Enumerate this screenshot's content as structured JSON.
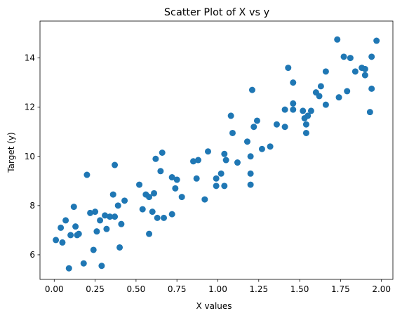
{
  "chart_data": {
    "type": "scatter",
    "title": "Scatter Plot of X vs y",
    "xlabel": "X values",
    "ylabel": "Target (y)",
    "xlim": [
      -0.087,
      2.07
    ],
    "ylim": [
      5.0,
      15.5
    ],
    "xticks": [
      0.0,
      0.25,
      0.5,
      0.75,
      1.0,
      1.25,
      1.5,
      1.75,
      2.0
    ],
    "xtick_labels": [
      "0.00",
      "0.25",
      "0.50",
      "0.75",
      "1.00",
      "1.25",
      "1.50",
      "1.75",
      "2.00"
    ],
    "yticks": [
      6,
      8,
      10,
      12,
      14
    ],
    "ytick_labels": [
      "6",
      "8",
      "10",
      "12",
      "14"
    ],
    "grid": false,
    "color": "#1f77b4",
    "points": [
      [
        0.01,
        6.6
      ],
      [
        0.04,
        7.1
      ],
      [
        0.05,
        6.5
      ],
      [
        0.07,
        7.4
      ],
      [
        0.09,
        5.45
      ],
      [
        0.1,
        6.8
      ],
      [
        0.12,
        7.95
      ],
      [
        0.13,
        7.15
      ],
      [
        0.14,
        6.8
      ],
      [
        0.15,
        6.85
      ],
      [
        0.18,
        5.65
      ],
      [
        0.2,
        9.25
      ],
      [
        0.22,
        7.7
      ],
      [
        0.24,
        6.2
      ],
      [
        0.25,
        7.75
      ],
      [
        0.26,
        6.95
      ],
      [
        0.28,
        7.4
      ],
      [
        0.29,
        5.55
      ],
      [
        0.31,
        7.6
      ],
      [
        0.32,
        7.05
      ],
      [
        0.34,
        7.55
      ],
      [
        0.36,
        8.45
      ],
      [
        0.37,
        7.55
      ],
      [
        0.37,
        9.65
      ],
      [
        0.39,
        8.0
      ],
      [
        0.4,
        6.3
      ],
      [
        0.41,
        7.25
      ],
      [
        0.43,
        8.2
      ],
      [
        0.52,
        8.85
      ],
      [
        0.54,
        7.85
      ],
      [
        0.56,
        8.45
      ],
      [
        0.58,
        6.85
      ],
      [
        0.58,
        8.35
      ],
      [
        0.6,
        7.75
      ],
      [
        0.61,
        8.5
      ],
      [
        0.62,
        9.9
      ],
      [
        0.63,
        7.5
      ],
      [
        0.65,
        9.4
      ],
      [
        0.66,
        10.15
      ],
      [
        0.67,
        7.5
      ],
      [
        0.72,
        9.15
      ],
      [
        0.72,
        7.65
      ],
      [
        0.74,
        8.7
      ],
      [
        0.75,
        9.05
      ],
      [
        0.78,
        8.35
      ],
      [
        0.85,
        9.8
      ],
      [
        0.87,
        9.1
      ],
      [
        0.88,
        9.85
      ],
      [
        0.92,
        8.25
      ],
      [
        0.94,
        10.2
      ],
      [
        0.99,
        9.1
      ],
      [
        0.99,
        8.8
      ],
      [
        1.02,
        9.3
      ],
      [
        1.04,
        10.1
      ],
      [
        1.04,
        8.8
      ],
      [
        1.05,
        9.85
      ],
      [
        1.08,
        11.65
      ],
      [
        1.09,
        10.95
      ],
      [
        1.12,
        9.75
      ],
      [
        1.18,
        10.6
      ],
      [
        1.2,
        8.85
      ],
      [
        1.2,
        9.3
      ],
      [
        1.2,
        10.0
      ],
      [
        1.21,
        12.7
      ],
      [
        1.22,
        11.2
      ],
      [
        1.24,
        11.45
      ],
      [
        1.27,
        10.3
      ],
      [
        1.32,
        10.4
      ],
      [
        1.36,
        11.3
      ],
      [
        1.41,
        11.9
      ],
      [
        1.41,
        11.2
      ],
      [
        1.43,
        13.6
      ],
      [
        1.46,
        13.0
      ],
      [
        1.46,
        12.15
      ],
      [
        1.46,
        11.9
      ],
      [
        1.52,
        11.85
      ],
      [
        1.53,
        11.55
      ],
      [
        1.54,
        11.3
      ],
      [
        1.54,
        10.95
      ],
      [
        1.55,
        11.65
      ],
      [
        1.57,
        11.85
      ],
      [
        1.6,
        12.6
      ],
      [
        1.62,
        12.45
      ],
      [
        1.63,
        12.85
      ],
      [
        1.66,
        13.45
      ],
      [
        1.66,
        12.1
      ],
      [
        1.73,
        14.75
      ],
      [
        1.74,
        12.4
      ],
      [
        1.77,
        14.05
      ],
      [
        1.79,
        12.65
      ],
      [
        1.81,
        14.0
      ],
      [
        1.84,
        13.45
      ],
      [
        1.88,
        13.6
      ],
      [
        1.9,
        13.55
      ],
      [
        1.9,
        13.3
      ],
      [
        1.93,
        11.8
      ],
      [
        1.94,
        14.05
      ],
      [
        1.94,
        12.75
      ],
      [
        1.97,
        14.7
      ]
    ]
  }
}
